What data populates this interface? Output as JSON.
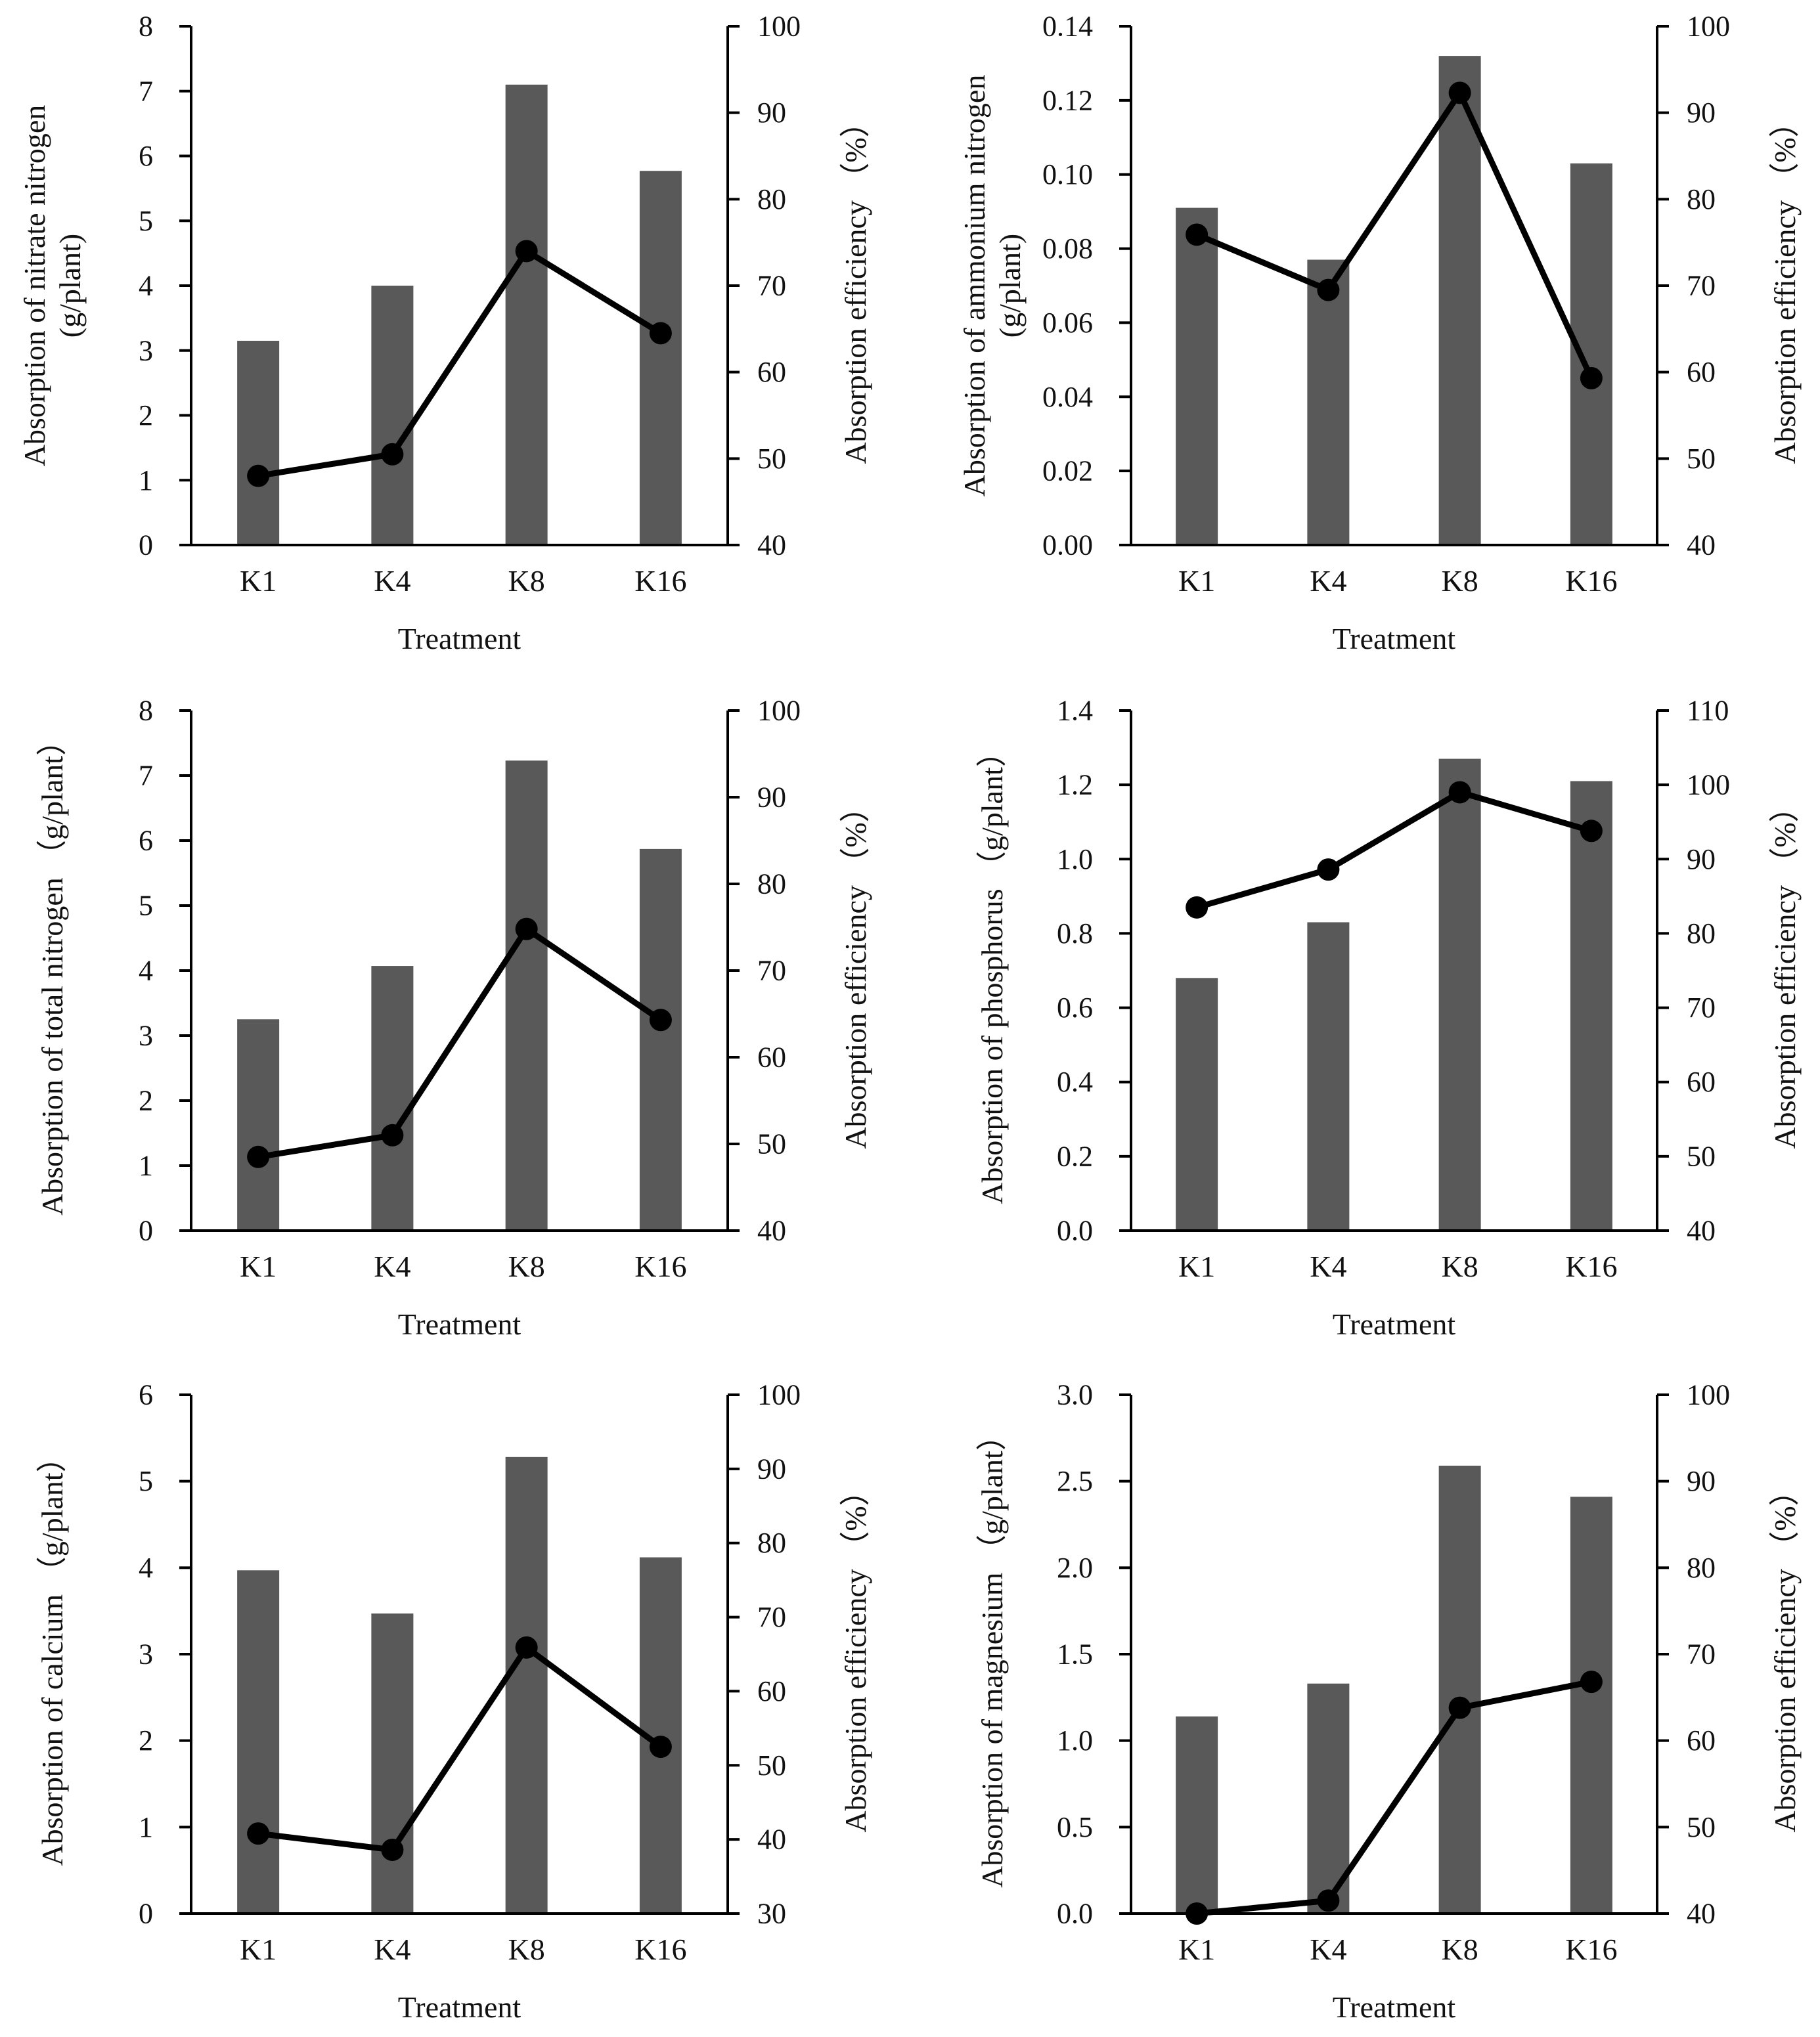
{
  "colors": {
    "bar": "#595959",
    "line": "#000000",
    "axis": "#000000",
    "background": "#ffffff"
  },
  "chart_data": [
    {
      "type": "bar+line",
      "categories": [
        "K1",
        "K4",
        "K8",
        "K16"
      ],
      "xlabel": "Treatment",
      "ylabel_left": "Absorption of nitrate nitrogen\n(g/plant)",
      "ylabel_right": "Absorption efficiency （%）",
      "ylim_left": [
        0,
        8
      ],
      "yticks_left": [
        "0",
        "1",
        "2",
        "3",
        "4",
        "5",
        "6",
        "7",
        "8"
      ],
      "ylim_right": [
        40,
        100
      ],
      "yticks_right": [
        "40",
        "50",
        "60",
        "70",
        "80",
        "90",
        "100"
      ],
      "series": [
        {
          "name": "Absorption (g/plant)",
          "kind": "bar",
          "axis": "left",
          "values": [
            3.15,
            4.0,
            7.1,
            5.77
          ]
        },
        {
          "name": "Absorption efficiency (%)",
          "kind": "line",
          "axis": "right",
          "values": [
            48.0,
            50.5,
            74.0,
            64.5
          ]
        }
      ]
    },
    {
      "type": "bar+line",
      "categories": [
        "K1",
        "K4",
        "K8",
        "K16"
      ],
      "xlabel": "Treatment",
      "ylabel_left": "Absorption of ammonium nitrogen\n(g/plant)",
      "ylabel_right": "Absorption efficiency （%）",
      "ylim_left": [
        0,
        0.14
      ],
      "yticks_left": [
        "0.00",
        "0.02",
        "0.04",
        "0.06",
        "0.08",
        "0.10",
        "0.12",
        "0.14"
      ],
      "ylim_right": [
        40,
        100
      ],
      "yticks_right": [
        "40",
        "50",
        "60",
        "70",
        "80",
        "90",
        "100"
      ],
      "series": [
        {
          "name": "Absorption (g/plant)",
          "kind": "bar",
          "axis": "left",
          "values": [
            0.091,
            0.077,
            0.132,
            0.103
          ]
        },
        {
          "name": "Absorption efficiency (%)",
          "kind": "line",
          "axis": "right",
          "values": [
            75.9,
            69.5,
            92.3,
            59.3
          ]
        }
      ]
    },
    {
      "type": "bar+line",
      "categories": [
        "K1",
        "K4",
        "K8",
        "K16"
      ],
      "xlabel": "Treatment",
      "ylabel_left": "Absorption of total nitrogen （g/plant）",
      "ylabel_right": "Absorption efficiency （%）",
      "ylim_left": [
        0,
        8
      ],
      "yticks_left": [
        "0",
        "1",
        "2",
        "3",
        "4",
        "5",
        "6",
        "7",
        "8"
      ],
      "ylim_right": [
        40,
        100
      ],
      "yticks_right": [
        "40",
        "50",
        "60",
        "70",
        "80",
        "90",
        "100"
      ],
      "series": [
        {
          "name": "Absorption (g/plant)",
          "kind": "bar",
          "axis": "left",
          "values": [
            3.25,
            4.07,
            7.23,
            5.87
          ]
        },
        {
          "name": "Absorption efficiency (%)",
          "kind": "line",
          "axis": "right",
          "values": [
            48.5,
            51.0,
            74.8,
            64.3
          ]
        }
      ]
    },
    {
      "type": "bar+line",
      "categories": [
        "K1",
        "K4",
        "K8",
        "K16"
      ],
      "xlabel": "Treatment",
      "ylabel_left": "Absorption of phosphorus （g/plant）",
      "ylabel_right": "Absorption efficiency （%）",
      "ylim_left": [
        0,
        1.4
      ],
      "yticks_left": [
        "0.0",
        "0.2",
        "0.4",
        "0.6",
        "0.8",
        "1.0",
        "1.2",
        "1.4"
      ],
      "ylim_right": [
        40,
        110
      ],
      "yticks_right": [
        "40",
        "50",
        "60",
        "70",
        "80",
        "90",
        "100",
        "110"
      ],
      "series": [
        {
          "name": "Absorption (g/plant)",
          "kind": "bar",
          "axis": "left",
          "values": [
            0.68,
            0.83,
            1.27,
            1.21
          ]
        },
        {
          "name": "Absorption efficiency (%)",
          "kind": "line",
          "axis": "right",
          "values": [
            83.5,
            88.6,
            99.0,
            93.8
          ]
        }
      ]
    },
    {
      "type": "bar+line",
      "categories": [
        "K1",
        "K4",
        "K8",
        "K16"
      ],
      "xlabel": "Treatment",
      "ylabel_left": "Absorption of calcium （g/plant）",
      "ylabel_right": "Absorption efficiency （%）",
      "ylim_left": [
        0,
        6
      ],
      "yticks_left": [
        "0",
        "1",
        "2",
        "3",
        "4",
        "5",
        "6"
      ],
      "ylim_right": [
        30,
        100
      ],
      "yticks_right": [
        "30",
        "40",
        "50",
        "60",
        "70",
        "80",
        "90",
        "100"
      ],
      "series": [
        {
          "name": "Absorption (g/plant)",
          "kind": "bar",
          "axis": "left",
          "values": [
            3.97,
            3.47,
            5.28,
            4.12
          ]
        },
        {
          "name": "Absorption efficiency (%)",
          "kind": "line",
          "axis": "right",
          "values": [
            40.8,
            38.6,
            65.9,
            52.5
          ]
        }
      ]
    },
    {
      "type": "bar+line",
      "categories": [
        "K1",
        "K4",
        "K8",
        "K16"
      ],
      "xlabel": "Treatment",
      "ylabel_left": "Absorption of magnesium （g/plant）",
      "ylabel_right": "Absorption efficiency （%）",
      "ylim_left": [
        0,
        3.0
      ],
      "yticks_left": [
        "0.0",
        "0.5",
        "1.0",
        "1.5",
        "2.0",
        "2.5",
        "3.0"
      ],
      "ylim_right": [
        40,
        100
      ],
      "yticks_right": [
        "40",
        "50",
        "60",
        "70",
        "80",
        "90",
        "100"
      ],
      "series": [
        {
          "name": "Absorption (g/plant)",
          "kind": "bar",
          "axis": "left",
          "values": [
            1.14,
            1.33,
            2.59,
            2.41
          ]
        },
        {
          "name": "Absorption efficiency (%)",
          "kind": "line",
          "axis": "right",
          "values": [
            40.0,
            41.5,
            63.8,
            66.8
          ]
        }
      ]
    }
  ]
}
